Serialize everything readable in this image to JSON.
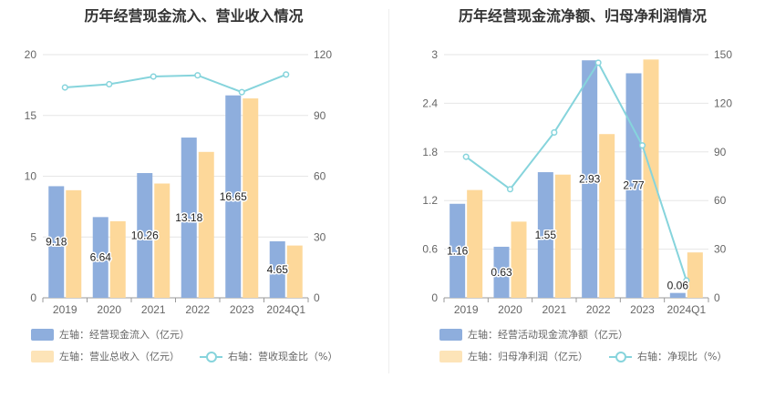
{
  "chart_data": [
    {
      "type": "bar",
      "title": "历年经营现金流入、营业收入情况",
      "categories": [
        "2019",
        "2020",
        "2021",
        "2022",
        "2023",
        "2024Q1"
      ],
      "left_axis": {
        "ticks": [
          "0",
          "5",
          "10",
          "15",
          "20"
        ],
        "ylim": [
          0,
          20
        ]
      },
      "right_axis": {
        "ticks": [
          "0",
          "30",
          "60",
          "90",
          "120"
        ],
        "ylim": [
          0,
          120
        ]
      },
      "series": [
        {
          "name": "左轴：经营现金流入（亿元）",
          "type": "bar",
          "axis": "left",
          "color": "#8eaedd",
          "values": [
            9.18,
            6.64,
            10.26,
            13.18,
            16.65,
            4.65
          ],
          "labels": [
            "9.18",
            "6.64",
            "10.26",
            "13.18",
            "16.65",
            "4.65"
          ]
        },
        {
          "name": "左轴：营业总收入（亿元）",
          "type": "bar",
          "axis": "left",
          "color": "#fdd89a",
          "values": [
            8.85,
            6.3,
            9.4,
            12.0,
            16.4,
            4.3
          ]
        },
        {
          "name": "右轴：营收现金比（%）",
          "type": "line",
          "axis": "right",
          "color": "#86d4dc",
          "values": [
            103.8,
            105.4,
            109.2,
            109.8,
            101.5,
            110.2
          ]
        }
      ]
    },
    {
      "type": "bar",
      "title": "历年经营现金流净额、归母净利润情况",
      "categories": [
        "2019",
        "2020",
        "2021",
        "2022",
        "2023",
        "2024Q1"
      ],
      "left_axis": {
        "ticks": [
          "0",
          "0.6",
          "1.2",
          "1.8",
          "2.4",
          "3"
        ],
        "ylim": [
          0,
          3
        ]
      },
      "right_axis": {
        "ticks": [
          "0",
          "30",
          "60",
          "90",
          "120",
          "150"
        ],
        "ylim": [
          0,
          150
        ]
      },
      "series": [
        {
          "name": "左轴：经营活动现金流净额（亿元）",
          "type": "bar",
          "axis": "left",
          "color": "#8eaedd",
          "values": [
            1.16,
            0.63,
            1.55,
            2.93,
            2.77,
            0.06
          ],
          "labels": [
            "1.16",
            "0.63",
            "1.55",
            "2.93",
            "2.77",
            "0.06"
          ]
        },
        {
          "name": "左轴：归母净利润（亿元）",
          "type": "bar",
          "axis": "left",
          "color": "#fdd89a",
          "values": [
            1.33,
            0.94,
            1.52,
            2.02,
            2.94,
            0.56
          ]
        },
        {
          "name": "右轴：净现比（%）",
          "type": "line",
          "axis": "right",
          "color": "#86d4dc",
          "values": [
            87.0,
            67.0,
            102.0,
            145.0,
            94.0,
            10.7
          ]
        }
      ]
    }
  ]
}
